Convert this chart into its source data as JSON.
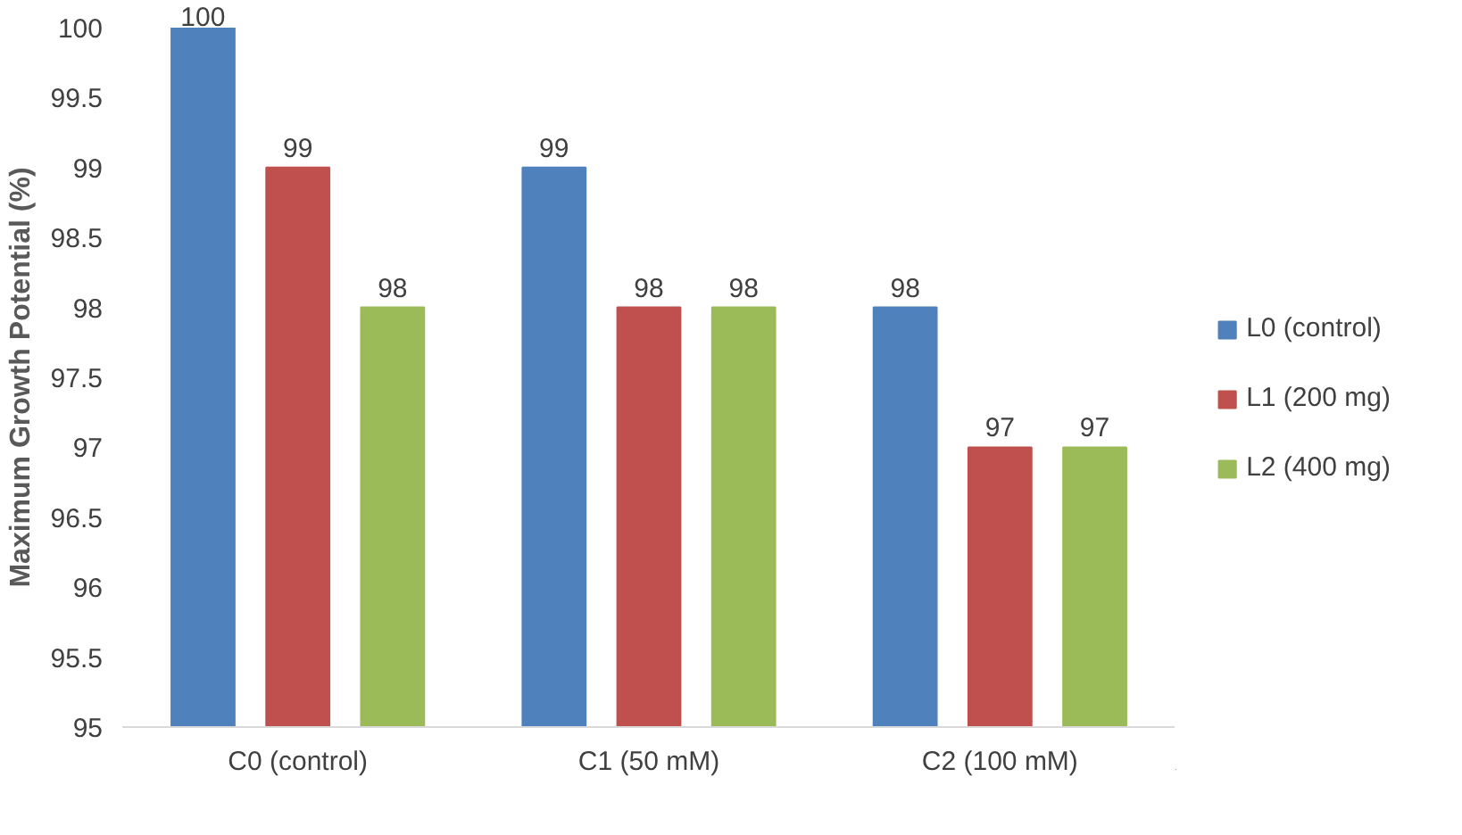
{
  "chart_data": {
    "type": "bar",
    "ylabel": "Maximum Growth Potential (%)",
    "categories": [
      "C0 (control)",
      "C1 (50 mM)",
      "C2 (100 mM)"
    ],
    "series": [
      {
        "name": "L0 (control)",
        "color": "#4f81bd",
        "values": [
          100,
          99,
          98
        ]
      },
      {
        "name": "L1 (200 mg)",
        "color": "#c0504d",
        "values": [
          99,
          98,
          97
        ]
      },
      {
        "name": "L2 (400 mg)",
        "color": "#9bbb59",
        "values": [
          98,
          98,
          97
        ]
      }
    ],
    "ylim": [
      95,
      100
    ],
    "yticks": [
      95,
      95.5,
      96,
      96.5,
      97,
      97.5,
      98,
      98.5,
      99,
      99.5,
      100
    ],
    "data_labels": true,
    "grid": false,
    "legend": "right"
  }
}
